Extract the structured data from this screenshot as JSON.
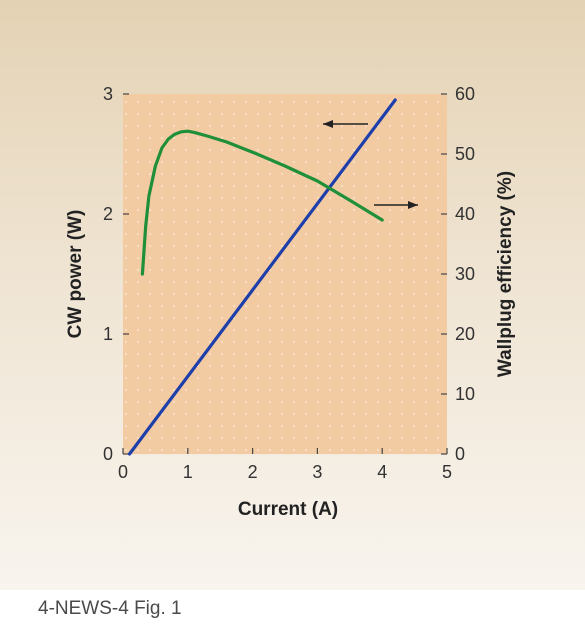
{
  "caption": "4-NEWS-4  Fig. 1",
  "chart_data": {
    "type": "line",
    "xlabel": "Current (A)",
    "ylabel_left": "CW power (W)",
    "ylabel_right": "Wallplug efficiency (%)",
    "xlim": [
      0,
      5
    ],
    "ylim_left": [
      0,
      3
    ],
    "ylim_right": [
      0,
      60
    ],
    "x_ticks": [
      0,
      1,
      2,
      3,
      4,
      5
    ],
    "y_left_ticks": [
      0,
      1,
      2,
      3
    ],
    "y_right_ticks": [
      0,
      10,
      20,
      30,
      40,
      50,
      60
    ],
    "grid": false,
    "series": [
      {
        "axis": "left",
        "color": "#1e3faa",
        "x": [
          0.1,
          4.2
        ],
        "y": [
          0,
          2.95
        ]
      },
      {
        "axis": "right",
        "color": "#1f8f3a",
        "x": [
          0.3,
          0.35,
          0.4,
          0.5,
          0.6,
          0.7,
          0.8,
          0.9,
          1.0,
          1.1,
          1.3,
          1.6,
          2.0,
          2.5,
          3.0,
          3.5,
          4.0
        ],
        "y": [
          30,
          38,
          43,
          48,
          51,
          52.5,
          53.3,
          53.7,
          53.8,
          53.6,
          53,
          52,
          50.3,
          48,
          45.5,
          42.3,
          39
        ]
      }
    ],
    "annotations": [
      {
        "type": "arrow",
        "direction": "left",
        "series": 0
      },
      {
        "type": "arrow",
        "direction": "right",
        "series": 1
      }
    ]
  }
}
